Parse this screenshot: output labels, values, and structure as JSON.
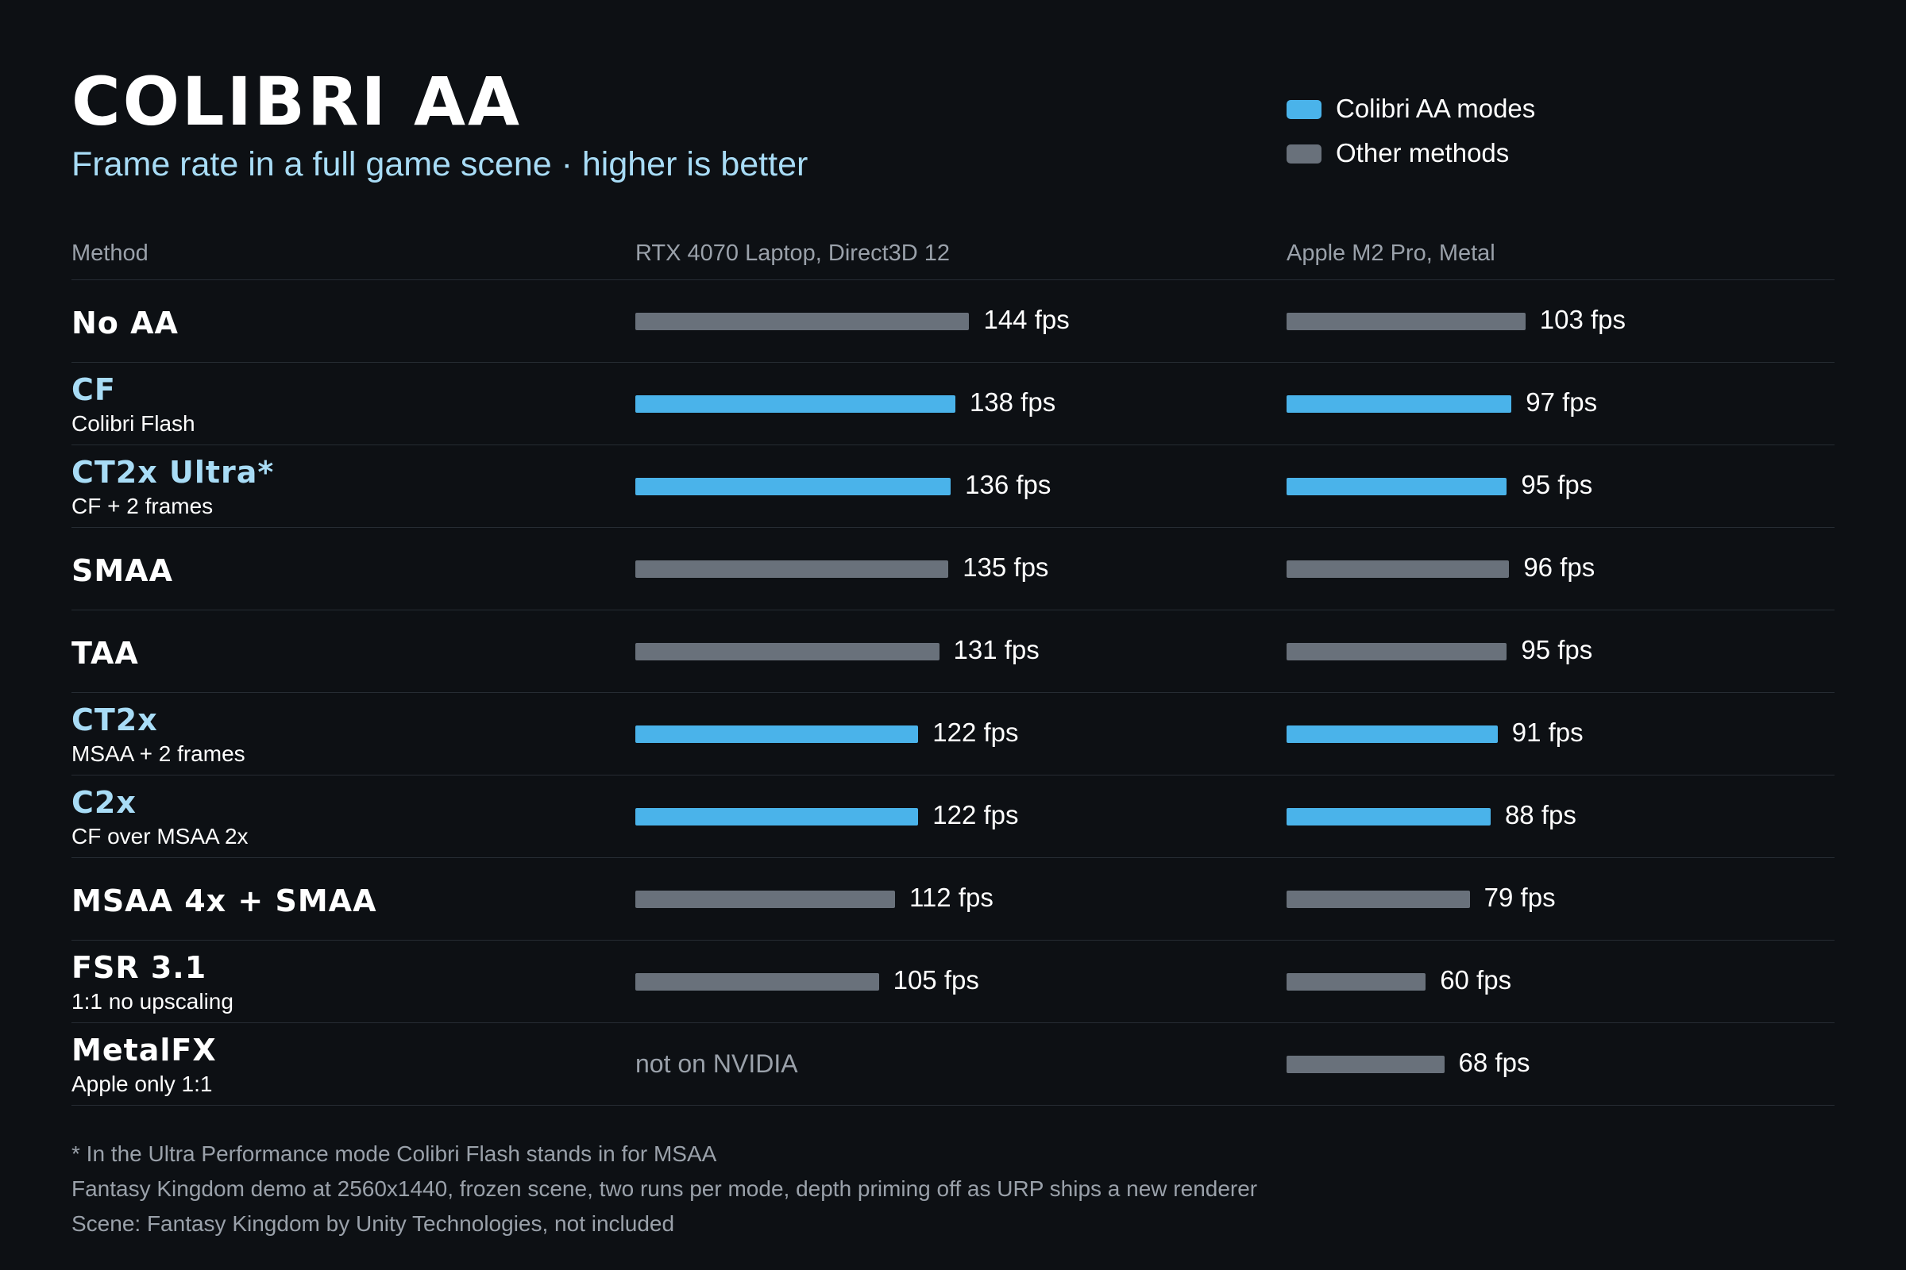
{
  "header": {
    "title": "COLIBRI AA",
    "subtitle": "Frame rate in a full game scene · higher is better"
  },
  "legend": [
    {
      "label": "Colibri AA modes",
      "color": "#4ab3ea"
    },
    {
      "label": "Other methods",
      "color": "#69717b"
    }
  ],
  "columns": {
    "method": "Method",
    "rtx": "RTX 4070 Laptop, Direct3D 12",
    "m2": "Apple M2 Pro, Metal"
  },
  "colors": {
    "colibri": "#4ab3ea",
    "other": "#69717b",
    "accent_text": "#a8dcf6",
    "background": "#0d1014"
  },
  "chart_data": {
    "type": "bar",
    "orientation": "horizontal",
    "unit": "fps",
    "categories": [
      "No AA",
      "CF",
      "CT2x Ultra*",
      "SMAA",
      "TAA",
      "CT2x",
      "C2x",
      "MSAA 4x + SMAA",
      "FSR 3.1",
      "MetalFX"
    ],
    "notes": [
      "",
      "Colibri Flash",
      "CF + 2 frames",
      "",
      "",
      "MSAA + 2 frames",
      "CF over MSAA 2x",
      "",
      "1:1 no upscaling",
      "Apple only 1:1"
    ],
    "groups": [
      "other",
      "colibri",
      "colibri",
      "other",
      "other",
      "colibri",
      "colibri",
      "other",
      "other",
      "other"
    ],
    "series": [
      {
        "name": "RTX 4070 Laptop, Direct3D 12",
        "values": [
          144,
          138,
          136,
          135,
          131,
          122,
          122,
          112,
          105,
          null
        ],
        "missing_label": "not on NVIDIA"
      },
      {
        "name": "Apple M2 Pro, Metal",
        "values": [
          103,
          97,
          95,
          96,
          95,
          91,
          88,
          79,
          60,
          68
        ]
      }
    ],
    "grid": false,
    "legend_position": "top-right"
  },
  "footnotes": [
    "* In the Ultra Performance mode Colibri Flash stands in for MSAA",
    "Fantasy Kingdom demo at 2560x1440, frozen scene, two runs per mode, depth priming off as URP ships a new renderer",
    "Scene: Fantasy Kingdom by Unity Technologies, not included"
  ]
}
